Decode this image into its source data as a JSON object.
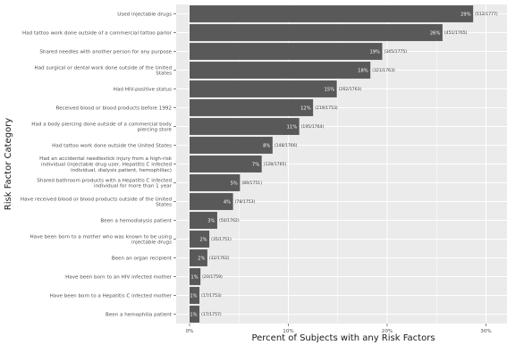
{
  "chart_data": {
    "type": "bar",
    "orientation": "horizontal",
    "title": "",
    "xlabel": "Percent of Subjects with any Risk Factors",
    "ylabel": "Risk Factor Category",
    "xlim": [
      0,
      0.3
    ],
    "x_ticks": [
      0,
      0.1,
      0.2,
      0.3
    ],
    "x_tick_labels": [
      "0%",
      "10%",
      "20%",
      "30%"
    ],
    "grid": true,
    "legend": "none",
    "colors": {
      "bar": "#595959",
      "panel": "#ebebeb",
      "grid": "#ffffff"
    },
    "categories": [
      "Used injectable drugs",
      "Had tattoo work done outside of a commercial tattoo parlor",
      "Shared needles with another person for any purpose",
      "Had surgical or dental work done outside of the United\nStates",
      "Had HIV-positive status",
      "Received blood or blood products before 1992",
      "Had a body piercing done outside of a commercial body\npiercing store",
      "Had tattoo work done outside the United States",
      "Had an accidental needlestick injury from a high-risk\nindividual (injectable drug user, Hepatitis C infected\nindividual, dialysis patient, hemophiliac)",
      "Shared bathroom products with a Hepatitis C infected\nindividual for more than 1 year",
      "Have received blood or blood products outside of the United\nStates",
      "Been a hemodialysis patient",
      "Have been born to a mother who was known to be using\ninjectable drugs",
      "Been an organ recipient",
      "Have been born to an HIV infected mother",
      "Have been born to a Hepatitis C infected mother",
      "Been a hemophilia patient"
    ],
    "values": [
      0.287,
      0.256,
      0.195,
      0.183,
      0.149,
      0.125,
      0.111,
      0.084,
      0.073,
      0.051,
      0.044,
      0.028,
      0.02,
      0.018,
      0.011,
      0.01,
      0.01
    ],
    "value_labels": [
      "29%",
      "26%",
      "19%",
      "18%",
      "15%",
      "12%",
      "11%",
      "8%",
      "7%",
      "5%",
      "4%",
      "3%",
      "2%",
      "2%",
      "1%",
      "1%",
      "1%"
    ],
    "count_labels": [
      "(512/1777)",
      "(451/1765)",
      "(345/1775)",
      "(321/1763)",
      "(262/1763)",
      "(219/1753)",
      "(195/1764)",
      "(148/1766)",
      "(128/1765)",
      "(89/1751)",
      "(78/1753)",
      "(50/1762)",
      "(35/1751)",
      "(32/1762)",
      "(20/1759)",
      "(17/1753)",
      "(17/1757)"
    ]
  }
}
